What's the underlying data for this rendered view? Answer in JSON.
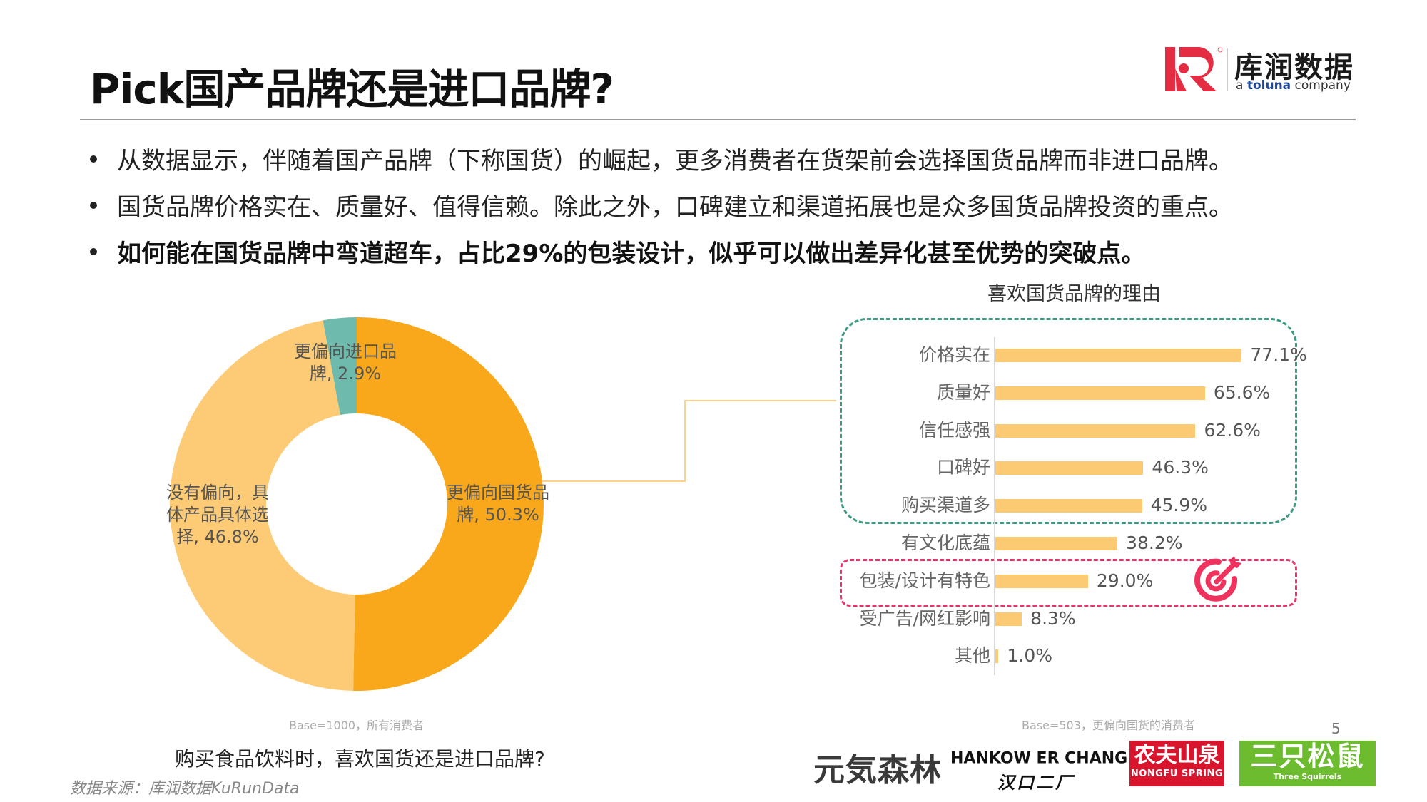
{
  "header": {
    "title": "Pick国产品牌还是进口品牌?",
    "logo": {
      "cn": "库润数据",
      "en_prefix": "a ",
      "en_brand": "toluna",
      "en_suffix": " company",
      "mark_color": "#e42c43"
    }
  },
  "bullets": [
    {
      "text": "从数据显示，伴随着国产品牌（下称国货）的崛起，更多消费者在货架前会选择国货品牌而非进口品牌。",
      "bold": false
    },
    {
      "text": "国货品牌价格实在、质量好、值得信赖。除此之外，口碑建立和渠道拓展也是众多国货品牌投资的重点。",
      "bold": false
    },
    {
      "text": "如何能在国货品牌中弯道超车，占比29%的包装设计，似乎可以做出差异化甚至优势的突破点。",
      "bold": true
    }
  ],
  "donut": {
    "labels": {
      "domestic_l1": "更偏向国货品",
      "domestic_l2": "牌, 50.3%",
      "neutral_l1": "没有偏向，具",
      "neutral_l2": "体产品具体选",
      "neutral_l3": "择, 46.8%",
      "import_l1": "更偏向进口品",
      "import_l2": "牌, 2.9%"
    },
    "base_note": "Base=1000，所有消费者",
    "question": "购买食品饮料时，喜欢国货还是进口品牌?"
  },
  "bars": {
    "title": "喜欢国货品牌的理由",
    "base_note": "Base=503，更偏向国货的消费者",
    "items": [
      {
        "label": "价格实在",
        "value": 77.1,
        "display": "77.1%"
      },
      {
        "label": "质量好",
        "value": 65.6,
        "display": "65.6%"
      },
      {
        "label": "信任感强",
        "value": 62.6,
        "display": "62.6%"
      },
      {
        "label": "口碑好",
        "value": 46.3,
        "display": "46.3%"
      },
      {
        "label": "购买渠道多",
        "value": 45.9,
        "display": "45.9%"
      },
      {
        "label": "有文化底蕴",
        "value": 38.2,
        "display": "38.2%"
      },
      {
        "label": "包装/设计有特色",
        "value": 29.0,
        "display": "29.0%"
      },
      {
        "label": "受广告/网红影响",
        "value": 8.3,
        "display": "8.3%"
      },
      {
        "label": "其他",
        "value": 1.0,
        "display": "1.0%"
      }
    ]
  },
  "footer": {
    "source": "数据来源：库润数据KuRunData",
    "page_number": "5",
    "brands": {
      "yuanqi": "元気森林",
      "hankow_en": "HANKOW ER CHANG",
      "hankow_reg": "®",
      "hankow_cn": "汉口二厂",
      "nongfu_cn": "农夫山泉",
      "nongfu_en": "NONGFU SPRING",
      "squirrels_cn": "三只松鼠",
      "squirrels_en": "Three Squirrels"
    }
  },
  "colors": {
    "domestic": "#f9a71b",
    "neutral": "#fdcb75",
    "import": "#6ebbae",
    "bar": "#fdca74",
    "highlight_teal": "#3e9a83",
    "highlight_red": "#e8336b"
  },
  "chart_data": [
    {
      "type": "pie",
      "subtype": "donut",
      "title": "购买食品饮料时，喜欢国货还是进口品牌?",
      "categories": [
        "更偏向国货品牌",
        "没有偏向，具体产品具体选择",
        "更偏向进口品牌"
      ],
      "values": [
        50.3,
        46.8,
        2.9
      ],
      "unit": "%",
      "colors": [
        "#f9a71b",
        "#fdcb75",
        "#6ebbae"
      ],
      "note": "Base=1000，所有消费者"
    },
    {
      "type": "bar",
      "orientation": "horizontal",
      "title": "喜欢国货品牌的理由",
      "categories": [
        "价格实在",
        "质量好",
        "信任感强",
        "口碑好",
        "购买渠道多",
        "有文化底蕴",
        "包装/设计有特色",
        "受广告/网红影响",
        "其他"
      ],
      "values": [
        77.1,
        65.6,
        62.6,
        46.3,
        45.9,
        38.2,
        29.0,
        8.3,
        1.0
      ],
      "unit": "%",
      "xlabel": "",
      "ylabel": "",
      "grid": false,
      "highlights": [
        {
          "categories": [
            "价格实在",
            "质量好",
            "信任感强",
            "口碑好",
            "购买渠道多"
          ],
          "style": "dashed-teal"
        },
        {
          "categories": [
            "包装/设计有特色"
          ],
          "style": "dashed-red",
          "icon": "target"
        }
      ],
      "note": "Base=503，更偏向国货的消费者"
    }
  ]
}
